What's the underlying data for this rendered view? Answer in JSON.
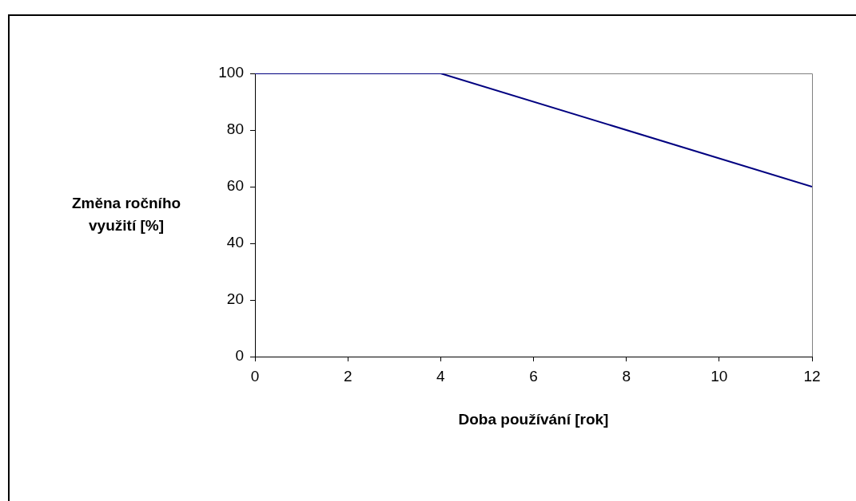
{
  "chart_data": {
    "type": "line",
    "xlabel": "Doba používání [rok]",
    "ylabel": "Změna ročního využití [%]",
    "x": [
      0,
      4,
      12
    ],
    "series": [
      {
        "color": "#000080",
        "values": [
          100,
          100,
          60
        ]
      }
    ],
    "xlim": [
      0,
      12
    ],
    "xticks": [
      0,
      2,
      4,
      6,
      8,
      10,
      12
    ],
    "ylim": [
      0,
      100
    ],
    "yticks": [
      0,
      20,
      40,
      60,
      80,
      100
    ],
    "grid": false,
    "legend": false,
    "marker": "none",
    "line_style": "solid"
  }
}
